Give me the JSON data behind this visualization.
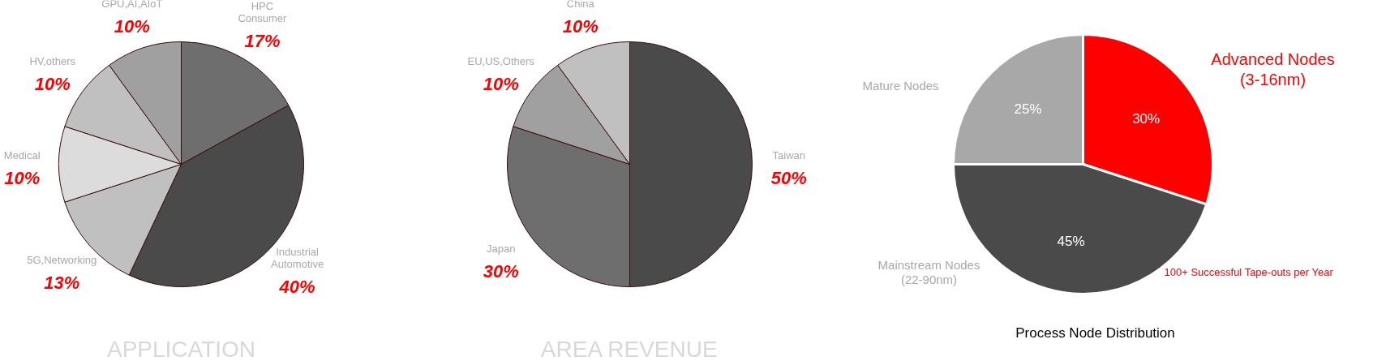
{
  "chart_data": [
    {
      "type": "pie",
      "title": "APPLICATION",
      "categories": [
        "HPC\nConsumer",
        "Industrial\nAutomotive",
        "5G,Networking",
        "Medical",
        "HV,others",
        "GPU,AI,AIoT"
      ],
      "values": [
        17,
        40,
        13,
        10,
        10,
        10
      ],
      "value_labels": [
        "17%",
        "40%",
        "13%",
        "10%",
        "10%",
        "10%"
      ],
      "colors": [
        "#6e6e6e",
        "#4a4a4a",
        "#c0c0c0",
        "#dcdcdc",
        "#c0c0c0",
        "#a0a0a0"
      ]
    },
    {
      "type": "pie",
      "title": "AREA REVENUE",
      "categories": [
        "Taiwan",
        "Japan",
        "EU,US,Others",
        "China"
      ],
      "values": [
        50,
        30,
        10,
        10
      ],
      "value_labels": [
        "50%",
        "30%",
        "10%",
        "10%"
      ],
      "colors": [
        "#4a4a4a",
        "#6e6e6e",
        "#a0a0a0",
        "#c0c0c0"
      ]
    },
    {
      "type": "pie",
      "title": "Process Node Distribution",
      "categories": [
        "Advanced Nodes\n(3-16nm)",
        "Mainstream Nodes\n(22-90nm)",
        "Mature Nodes"
      ],
      "values": [
        30,
        45,
        25
      ],
      "value_labels": [
        "30%",
        "45%",
        "25%"
      ],
      "colors": [
        "#ff0000",
        "#4a4a4a",
        "#a8a8a8"
      ],
      "annotations": [
        "100+ Successful Tape-outs per Year"
      ]
    }
  ]
}
